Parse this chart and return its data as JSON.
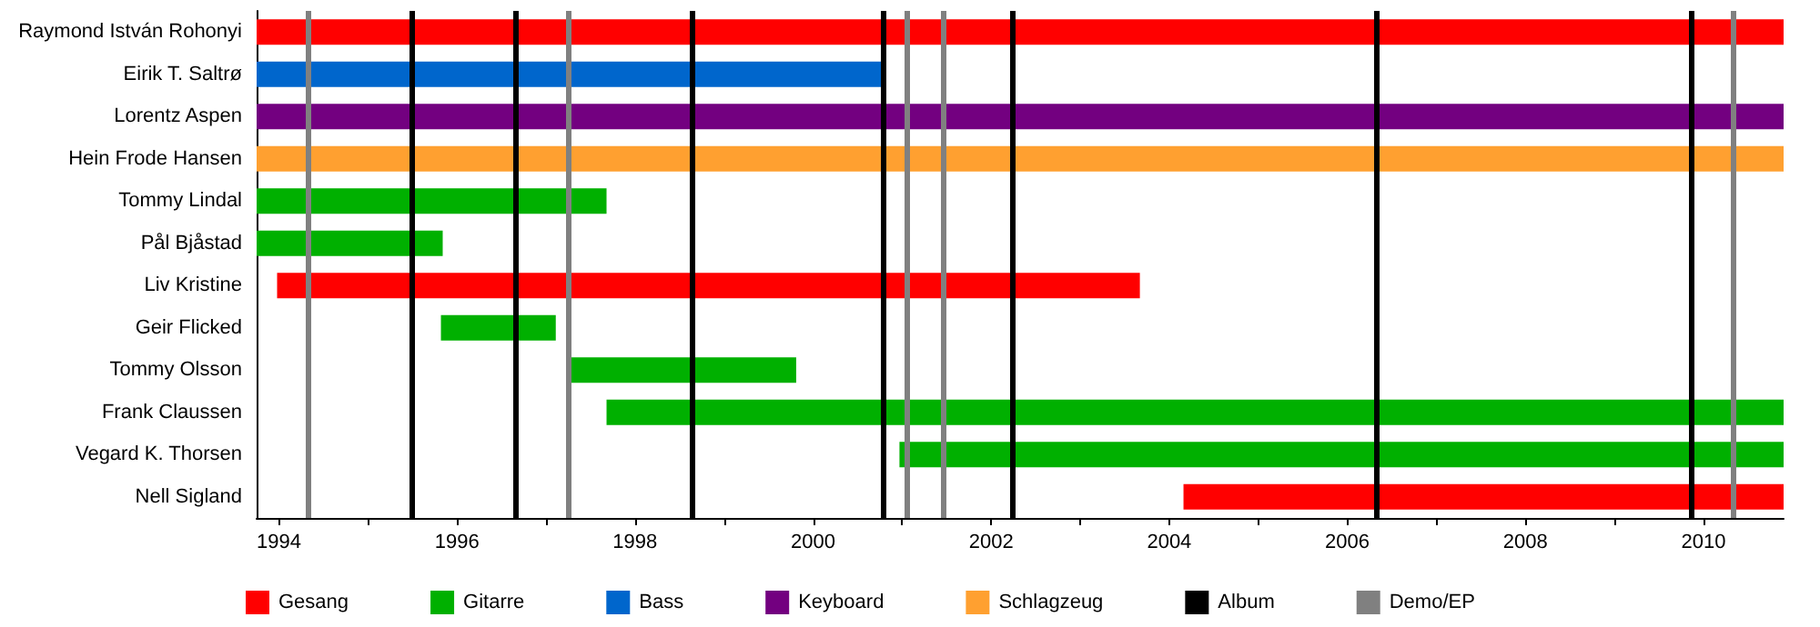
{
  "chart_data": {
    "type": "bar",
    "orientation": "horizontal",
    "legend": "bottom",
    "categories": [
      "Raymond István Rohonyi",
      "Eirik T. Saltrø",
      "Lorentz Aspen",
      "Hein Frode Hansen",
      "Tommy Lindal",
      "Pål Bjåstad",
      "Liv Kristine",
      "Geir Flicked",
      "Tommy Olsson",
      "Frank Claussen",
      "Vegard K. Thorsen",
      "Nell Sigland"
    ],
    "series": [
      {
        "name": "Gesang",
        "color": "#ff0000",
        "values": [
          17.15,
          null,
          null,
          null,
          null,
          null,
          9.69,
          null,
          null,
          null,
          null,
          6.74
        ],
        "base": [
          1993.75,
          null,
          null,
          null,
          null,
          null,
          1993.98,
          null,
          null,
          null,
          null,
          2004.16
        ]
      },
      {
        "name": "Gitarre",
        "color": "#00b000",
        "values": [
          null,
          null,
          null,
          null,
          3.93,
          2.09,
          null,
          1.29,
          2.53,
          13.22,
          9.93,
          null
        ],
        "base": [
          null,
          null,
          null,
          null,
          1993.75,
          1993.75,
          null,
          1995.82,
          1997.28,
          1997.68,
          2000.97,
          null
        ]
      },
      {
        "name": "Bass",
        "color": "#0066cc",
        "values": [
          null,
          7.05,
          null,
          null,
          null,
          null,
          null,
          null,
          null,
          null,
          null,
          null
        ],
        "base": [
          null,
          1993.75,
          null,
          null,
          null,
          null,
          null,
          null,
          null,
          null,
          null,
          null
        ]
      },
      {
        "name": "Keyboard",
        "color": "#730080",
        "values": [
          null,
          null,
          17.15,
          null,
          null,
          null,
          null,
          null,
          null,
          null,
          null,
          null
        ],
        "base": [
          null,
          null,
          1993.75,
          null,
          null,
          null,
          null,
          null,
          null,
          null,
          null,
          null
        ]
      },
      {
        "name": "Schlagzeug",
        "color": "#ffa030",
        "values": [
          null,
          null,
          null,
          17.15,
          null,
          null,
          null,
          null,
          null,
          null,
          null,
          null
        ],
        "base": [
          null,
          null,
          null,
          1993.75,
          null,
          null,
          null,
          null,
          null,
          null,
          null,
          null
        ]
      }
    ],
    "ref_lines": [
      {
        "axis": "x",
        "value": 1995.49,
        "label": "Album",
        "color": "#000000"
      },
      {
        "axis": "x",
        "value": 1996.66,
        "color": "#000000"
      },
      {
        "axis": "x",
        "value": 1998.64,
        "color": "#000000"
      },
      {
        "axis": "x",
        "value": 2000.79,
        "color": "#000000"
      },
      {
        "axis": "x",
        "value": 2002.24,
        "color": "#000000"
      },
      {
        "axis": "x",
        "value": 2006.33,
        "color": "#000000"
      },
      {
        "axis": "x",
        "value": 2009.87,
        "color": "#000000"
      },
      {
        "axis": "x",
        "value": 1994.33,
        "label": "Demo/EP",
        "color": "#808080"
      },
      {
        "axis": "x",
        "value": 1997.25,
        "color": "#808080"
      },
      {
        "axis": "x",
        "value": 2001.05,
        "color": "#808080"
      },
      {
        "axis": "x",
        "value": 2001.46,
        "color": "#808080"
      },
      {
        "axis": "x",
        "value": 2010.34,
        "color": "#808080"
      }
    ],
    "xlim": [
      1993.75,
      2010.9
    ],
    "xticks": [
      1994,
      {
        "value": 1995,
        "label": null
      },
      1996,
      {
        "value": 1997,
        "label": null
      },
      1998,
      {
        "value": 1999,
        "label": null
      },
      2000,
      {
        "value": 2001,
        "label": null
      },
      2002,
      {
        "value": 2003,
        "label": null
      },
      2004,
      {
        "value": 2005,
        "label": null
      },
      2006,
      {
        "value": 2007,
        "label": null
      },
      2008,
      {
        "value": 2009,
        "label": null
      },
      2010
    ]
  }
}
